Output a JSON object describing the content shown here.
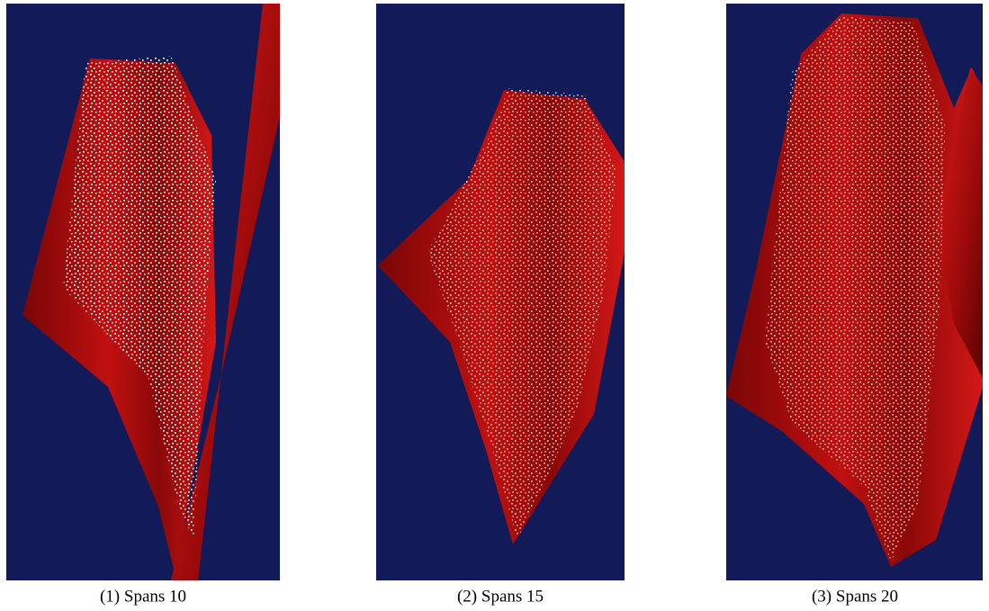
{
  "captions": [
    "(1) Spans 10",
    "(2) Spans 15",
    "(3) Spans 20"
  ]
}
